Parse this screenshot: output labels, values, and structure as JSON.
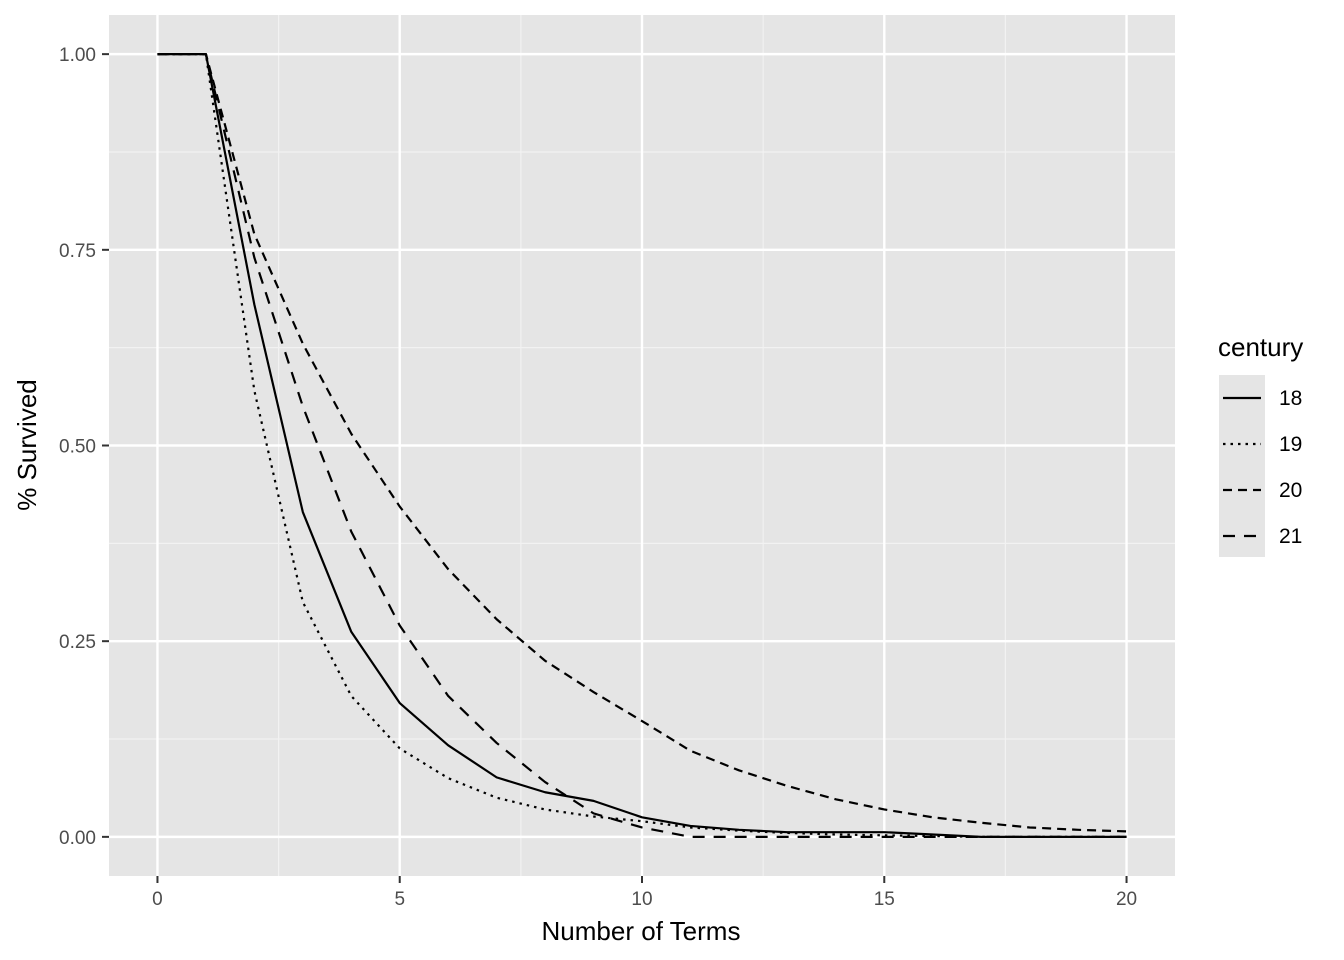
{
  "chart_data": {
    "type": "line",
    "title": "",
    "xlabel": "Number of Terms",
    "ylabel": "% Survived",
    "xlim": [
      -1,
      21
    ],
    "ylim": [
      -0.05,
      1.05
    ],
    "x_ticks": [
      0,
      5,
      10,
      15,
      20
    ],
    "x_tick_labels": [
      "0",
      "5",
      "10",
      "15",
      "20"
    ],
    "y_ticks": [
      0,
      0.25,
      0.5,
      0.75,
      1.0
    ],
    "y_tick_labels": [
      "0.00",
      "0.25",
      "0.50",
      "0.75",
      "1.00"
    ],
    "grid": true,
    "legend": {
      "title": "century",
      "placement": "right"
    },
    "x": [
      0,
      1,
      2,
      3,
      4,
      5,
      6,
      7,
      8,
      9,
      10,
      11,
      12,
      13,
      14,
      15,
      16,
      17,
      18,
      19,
      20
    ],
    "series": [
      {
        "name": "18",
        "linetype": "solid",
        "values": [
          1.0,
          1.0,
          0.68,
          0.415,
          0.262,
          0.171,
          0.117,
          0.076,
          0.057,
          0.046,
          0.025,
          0.014,
          0.009,
          0.006,
          0.006,
          0.006,
          0.003,
          0.0,
          0.0,
          0.0,
          0.0
        ]
      },
      {
        "name": "19",
        "linetype": "dotted",
        "values": [
          1.0,
          1.0,
          0.57,
          0.3,
          0.18,
          0.113,
          0.075,
          0.05,
          0.035,
          0.026,
          0.02,
          0.012,
          0.008,
          0.005,
          0.003,
          0.002,
          0.001,
          0.0,
          0.0,
          0.0,
          0.0
        ]
      },
      {
        "name": "20",
        "linetype": "dashed",
        "values": [
          1.0,
          1.0,
          0.77,
          0.63,
          0.515,
          0.422,
          0.342,
          0.278,
          0.225,
          0.185,
          0.148,
          0.11,
          0.085,
          0.065,
          0.048,
          0.035,
          0.025,
          0.018,
          0.012,
          0.009,
          0.007
        ]
      },
      {
        "name": "21",
        "linetype": "longdash",
        "values": [
          1.0,
          1.0,
          0.74,
          0.55,
          0.39,
          0.27,
          0.18,
          0.12,
          0.07,
          0.03,
          0.012,
          0.0,
          0.0,
          0.0,
          0.0,
          0.0,
          0.0,
          0.0,
          0.0,
          0.0,
          0.0
        ]
      }
    ]
  }
}
